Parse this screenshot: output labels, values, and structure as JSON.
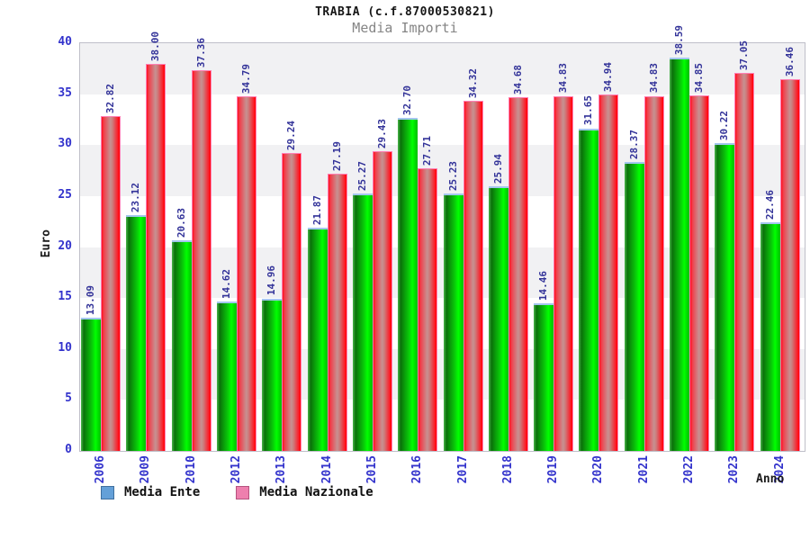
{
  "title": "TRABIA (c.f.87000530821)",
  "subtitle": "Media Importi",
  "y_axis_label": "Euro",
  "x_axis_label": "Anno",
  "legend": {
    "items": [
      {
        "label": "Media Ente",
        "swatch_fill": "#64a0d8",
        "swatch_border": "#3f6f9e"
      },
      {
        "label": "Media Nazionale",
        "swatch_fill": "#ee7fae",
        "swatch_border": "#b5537f"
      }
    ]
  },
  "colors": {
    "axis_tick_text": "#3333cc",
    "value_label_text": "#333399",
    "subtitle_text": "#858585",
    "band_gray": "#f1f1f3",
    "plot_border": "#bfbfc9",
    "bar_green_bright": "#00ff00",
    "bar_green_cap": "#a3c6ee",
    "bar_red": "#ff1020",
    "bar_red_center": "#c79191",
    "bar_red_border": "#ff7fb4"
  },
  "chart_data": {
    "type": "bar",
    "title": "TRABIA (c.f.87000530821)",
    "subtitle": "Media Importi",
    "xlabel": "Anno",
    "ylabel": "Euro",
    "ylim": [
      0,
      40
    ],
    "y_ticks": [
      0,
      5,
      10,
      15,
      20,
      25,
      30,
      35,
      40
    ],
    "grid": "alternating horizontal gray/white bands every 5 units",
    "legend_position": "bottom-left",
    "value_labels": "rotated 90deg above each bar, two decimals",
    "categories": [
      "2006",
      "2009",
      "2010",
      "2012",
      "2013",
      "2014",
      "2015",
      "2016",
      "2017",
      "2018",
      "2019",
      "2020",
      "2021",
      "2022",
      "2023",
      "2024"
    ],
    "series": [
      {
        "name": "Media Ente",
        "values": [
          13.09,
          23.12,
          20.63,
          14.62,
          14.96,
          21.87,
          25.27,
          32.7,
          25.23,
          25.94,
          14.46,
          31.65,
          28.37,
          38.59,
          30.22,
          22.46
        ]
      },
      {
        "name": "Media Nazionale",
        "values": [
          32.82,
          38.0,
          37.36,
          34.79,
          29.24,
          27.19,
          29.43,
          27.71,
          34.32,
          34.68,
          34.83,
          34.94,
          34.83,
          34.85,
          37.05,
          36.46
        ]
      }
    ]
  }
}
